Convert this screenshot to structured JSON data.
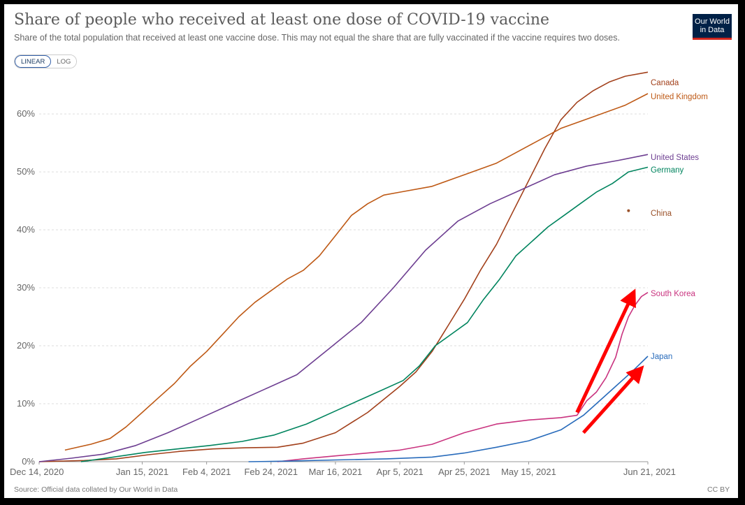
{
  "header": {
    "title": "Share of people who received at least one dose of COVID-19 vaccine",
    "subtitle": "Share of the total population that received at least one vaccine dose. This may not equal the share that are fully vaccinated if the vaccine requires two doses.",
    "logo_line1": "Our World",
    "logo_line2": "in Data"
  },
  "controls": {
    "linear_label": "LINEAR",
    "log_label": "LOG",
    "selected": "LINEAR"
  },
  "footer": {
    "source": "Source: Official data collated by Our World in Data",
    "license": "CC BY"
  },
  "chart_data": {
    "type": "line",
    "title": "Share of people who received at least one dose of COVID-19 vaccine",
    "xlabel": "",
    "ylabel": "",
    "ylim": [
      0,
      67
    ],
    "y_ticks": [
      0,
      10,
      20,
      30,
      40,
      50,
      60
    ],
    "y_tick_labels": [
      "0%",
      "10%",
      "20%",
      "30%",
      "40%",
      "50%",
      "60%"
    ],
    "x_range": [
      "2020-12-14",
      "2021-06-21"
    ],
    "x_ticks": [
      "2020-12-14",
      "2021-01-15",
      "2021-02-04",
      "2021-02-24",
      "2021-03-16",
      "2021-04-05",
      "2021-04-25",
      "2021-05-15",
      "2021-06-21"
    ],
    "x_tick_labels": [
      "Dec 14, 2020",
      "Jan 15, 2021",
      "Feb 4, 2021",
      "Feb 24, 2021",
      "Mar 16, 2021",
      "Apr 5, 2021",
      "Apr 25, 2021",
      "May 15, 2021",
      "Jun 21, 2021"
    ],
    "grid": "horizontal-dashed",
    "legend": "end-of-line labels",
    "series": [
      {
        "name": "Canada",
        "color": "#a2401b",
        "points": [
          [
            "2020-12-14",
            0
          ],
          [
            "2020-12-28",
            0.2
          ],
          [
            "2021-01-07",
            0.5
          ],
          [
            "2021-01-17",
            1.2
          ],
          [
            "2021-01-27",
            1.8
          ],
          [
            "2021-02-06",
            2.2
          ],
          [
            "2021-02-16",
            2.4
          ],
          [
            "2021-02-26",
            2.5
          ],
          [
            "2021-03-06",
            3.2
          ],
          [
            "2021-03-16",
            5
          ],
          [
            "2021-03-26",
            8.5
          ],
          [
            "2021-04-05",
            13
          ],
          [
            "2021-04-10",
            15.5
          ],
          [
            "2021-04-15",
            19
          ],
          [
            "2021-04-20",
            23.5
          ],
          [
            "2021-04-25",
            28
          ],
          [
            "2021-04-30",
            33
          ],
          [
            "2021-05-05",
            37.5
          ],
          [
            "2021-05-10",
            43
          ],
          [
            "2021-05-15",
            48.5
          ],
          [
            "2021-05-20",
            54
          ],
          [
            "2021-05-25",
            59
          ],
          [
            "2021-05-30",
            62
          ],
          [
            "2021-06-04",
            64
          ],
          [
            "2021-06-09",
            65.5
          ],
          [
            "2021-06-14",
            66.5
          ],
          [
            "2021-06-21",
            67.2
          ]
        ]
      },
      {
        "name": "United Kingdom",
        "color": "#be5915",
        "points": [
          [
            "2020-12-22",
            2
          ],
          [
            "2020-12-30",
            3
          ],
          [
            "2021-01-05",
            4
          ],
          [
            "2021-01-10",
            6
          ],
          [
            "2021-01-15",
            8.5
          ],
          [
            "2021-01-20",
            11
          ],
          [
            "2021-01-25",
            13.5
          ],
          [
            "2021-01-30",
            16.5
          ],
          [
            "2021-02-04",
            19
          ],
          [
            "2021-02-09",
            22
          ],
          [
            "2021-02-14",
            25
          ],
          [
            "2021-02-19",
            27.5
          ],
          [
            "2021-02-24",
            29.5
          ],
          [
            "2021-03-01",
            31.5
          ],
          [
            "2021-03-06",
            33
          ],
          [
            "2021-03-11",
            35.5
          ],
          [
            "2021-03-16",
            39
          ],
          [
            "2021-03-21",
            42.5
          ],
          [
            "2021-03-26",
            44.5
          ],
          [
            "2021-03-31",
            46
          ],
          [
            "2021-04-05",
            46.5
          ],
          [
            "2021-04-15",
            47.5
          ],
          [
            "2021-04-25",
            49.5
          ],
          [
            "2021-05-05",
            51.5
          ],
          [
            "2021-05-15",
            54.5
          ],
          [
            "2021-05-25",
            57.5
          ],
          [
            "2021-06-04",
            59.5
          ],
          [
            "2021-06-14",
            61.5
          ],
          [
            "2021-06-21",
            63.5
          ]
        ]
      },
      {
        "name": "United States",
        "color": "#6d3e91",
        "points": [
          [
            "2020-12-14",
            0
          ],
          [
            "2020-12-24",
            0.6
          ],
          [
            "2021-01-03",
            1.3
          ],
          [
            "2021-01-13",
            2.8
          ],
          [
            "2021-01-23",
            5
          ],
          [
            "2021-02-02",
            7.5
          ],
          [
            "2021-02-12",
            10
          ],
          [
            "2021-02-22",
            12.5
          ],
          [
            "2021-03-04",
            15
          ],
          [
            "2021-03-14",
            19.5
          ],
          [
            "2021-03-24",
            24
          ],
          [
            "2021-04-03",
            30
          ],
          [
            "2021-04-13",
            36.5
          ],
          [
            "2021-04-23",
            41.5
          ],
          [
            "2021-05-03",
            44.5
          ],
          [
            "2021-05-13",
            47
          ],
          [
            "2021-05-23",
            49.5
          ],
          [
            "2021-06-02",
            51
          ],
          [
            "2021-06-12",
            52
          ],
          [
            "2021-06-21",
            53
          ]
        ]
      },
      {
        "name": "Germany",
        "color": "#00845e",
        "points": [
          [
            "2020-12-27",
            0
          ],
          [
            "2021-01-06",
            0.8
          ],
          [
            "2021-01-16",
            1.6
          ],
          [
            "2021-01-26",
            2.2
          ],
          [
            "2021-02-05",
            2.8
          ],
          [
            "2021-02-15",
            3.5
          ],
          [
            "2021-02-25",
            4.6
          ],
          [
            "2021-03-07",
            6.5
          ],
          [
            "2021-03-17",
            9
          ],
          [
            "2021-03-27",
            11.5
          ],
          [
            "2021-04-06",
            14
          ],
          [
            "2021-04-11",
            16.5
          ],
          [
            "2021-04-16",
            20
          ],
          [
            "2021-04-21",
            22
          ],
          [
            "2021-04-26",
            24
          ],
          [
            "2021-05-01",
            28
          ],
          [
            "2021-05-06",
            31.5
          ],
          [
            "2021-05-11",
            35.5
          ],
          [
            "2021-05-16",
            38
          ],
          [
            "2021-05-21",
            40.5
          ],
          [
            "2021-05-26",
            42.5
          ],
          [
            "2021-05-31",
            44.5
          ],
          [
            "2021-06-05",
            46.5
          ],
          [
            "2021-06-10",
            48
          ],
          [
            "2021-06-15",
            50
          ],
          [
            "2021-06-21",
            50.8
          ]
        ]
      },
      {
        "name": "China",
        "color": "#9a5129",
        "points": [
          [
            "2021-06-15",
            43.3
          ]
        ]
      },
      {
        "name": "South Korea",
        "color": "#c9337f",
        "points": [
          [
            "2021-02-26",
            0
          ],
          [
            "2021-03-06",
            0.5
          ],
          [
            "2021-03-16",
            1
          ],
          [
            "2021-03-26",
            1.5
          ],
          [
            "2021-04-05",
            2
          ],
          [
            "2021-04-15",
            3
          ],
          [
            "2021-04-25",
            5
          ],
          [
            "2021-05-05",
            6.5
          ],
          [
            "2021-05-15",
            7.2
          ],
          [
            "2021-05-25",
            7.6
          ],
          [
            "2021-05-30",
            8
          ],
          [
            "2021-06-02",
            10.5
          ],
          [
            "2021-06-05",
            12
          ],
          [
            "2021-06-08",
            14.5
          ],
          [
            "2021-06-11",
            18
          ],
          [
            "2021-06-13",
            22
          ],
          [
            "2021-06-15",
            25
          ],
          [
            "2021-06-17",
            27
          ],
          [
            "2021-06-19",
            28.5
          ],
          [
            "2021-06-21",
            29.2
          ]
        ]
      },
      {
        "name": "Japan",
        "color": "#286bbb",
        "points": [
          [
            "2021-02-17",
            0
          ],
          [
            "2021-03-01",
            0.1
          ],
          [
            "2021-03-16",
            0.3
          ],
          [
            "2021-04-01",
            0.5
          ],
          [
            "2021-04-15",
            0.8
          ],
          [
            "2021-04-25",
            1.5
          ],
          [
            "2021-05-05",
            2.5
          ],
          [
            "2021-05-15",
            3.6
          ],
          [
            "2021-05-25",
            5.5
          ],
          [
            "2021-06-01",
            8
          ],
          [
            "2021-06-06",
            10.5
          ],
          [
            "2021-06-11",
            13
          ],
          [
            "2021-06-16",
            15.5
          ],
          [
            "2021-06-21",
            18.2
          ]
        ]
      }
    ],
    "annotations": [
      {
        "type": "arrow",
        "color": "#ff0000",
        "from": [
          "2021-05-30",
          8.5
        ],
        "to": [
          "2021-06-16",
          28.5
        ]
      },
      {
        "type": "arrow",
        "color": "#ff0000",
        "from": [
          "2021-06-01",
          5
        ],
        "to": [
          "2021-06-18",
          15.5
        ]
      }
    ]
  }
}
